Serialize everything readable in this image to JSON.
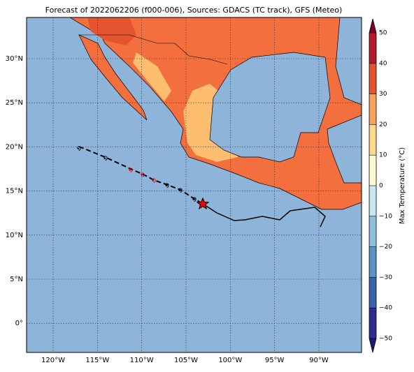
{
  "title": "Forecast of 2022062206 (f000-006), Sources: GDACS (TC track), GFS (Meteo)",
  "lat_labels": [
    "30°N",
    "25°N",
    "20°N",
    "15°N",
    "10°N",
    "5°N",
    "0°"
  ],
  "lon_labels": [
    "120°W",
    "115°W",
    "110°W",
    "105°W",
    "100°W",
    "95°W",
    "90°W"
  ],
  "colorbar": {
    "label": "Max Temperature (°C)",
    "ticks": [
      {
        "value": -50,
        "label": "−50"
      },
      {
        "value": -40,
        "label": "−40"
      },
      {
        "value": -30,
        "label": "−30"
      },
      {
        "value": -20,
        "label": "−20"
      },
      {
        "value": -10,
        "label": "−10"
      },
      0,
      10,
      20,
      30,
      40,
      50
    ],
    "colors": [
      "#2b2c8c",
      "#3c62a9",
      "#5d91c3",
      "#91bfdb",
      "#c8e6f0",
      "#fefdd2",
      "#fdd98b",
      "#f9a25a",
      "#e5532f",
      "#b5192a"
    ],
    "under_color": "#1d1b6b",
    "over_color": "#7f0026"
  }
}
